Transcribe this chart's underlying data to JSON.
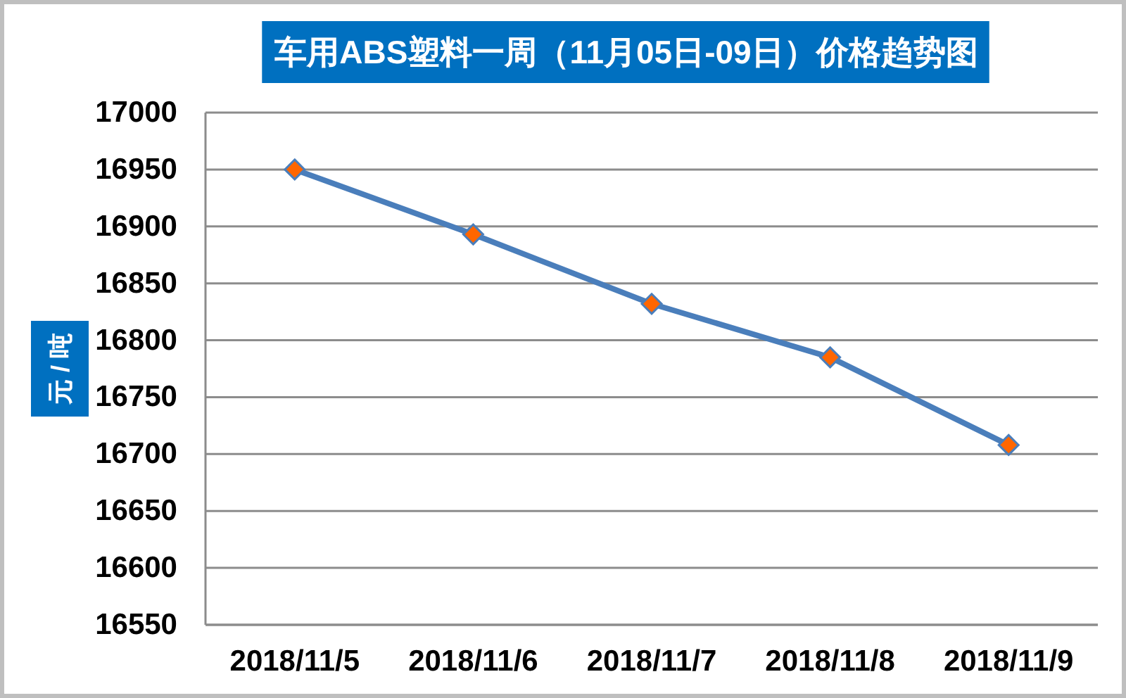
{
  "chart_data": {
    "type": "line",
    "title": "车用ABS塑料一周（11月05日-09日）价格趋势图",
    "ylabel": "元 / 吨",
    "categories": [
      "2018/11/5",
      "2018/11/6",
      "2018/11/7",
      "2018/11/8",
      "2018/11/9"
    ],
    "series": [
      {
        "color": "#4a7ebb",
        "colors": [
          "#ff6600",
          "#ff6600",
          "#ff6600",
          "#ff6600",
          "#ff6600"
        ],
        "values": [
          16950,
          16893,
          16832,
          16785,
          16708
        ]
      }
    ],
    "ylim": [
      16550,
      17000
    ],
    "yticks": [
      16550,
      16600,
      16650,
      16700,
      16750,
      16800,
      16850,
      16900,
      16950,
      17000
    ],
    "grid": "y",
    "marker": "diamond",
    "line_style": "solid"
  }
}
